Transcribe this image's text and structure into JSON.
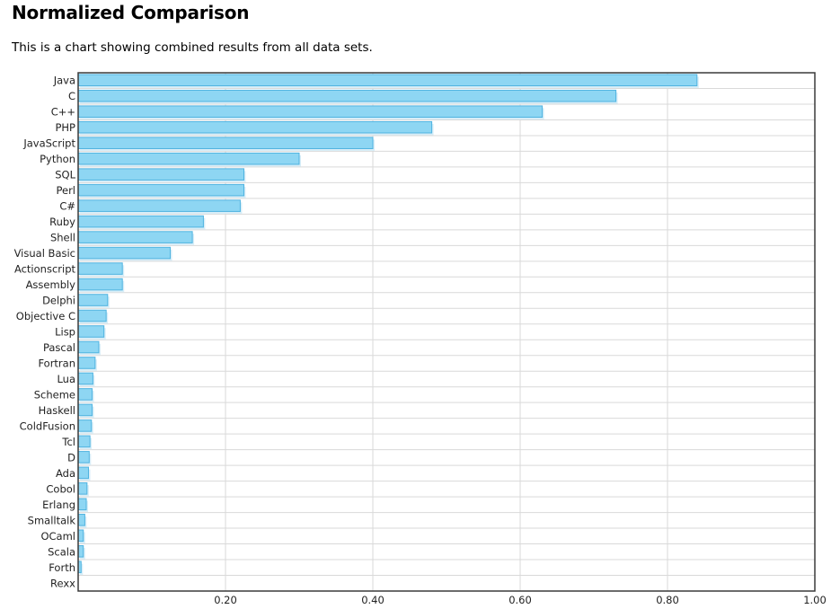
{
  "page": {
    "title": "Normalized Comparison",
    "description": "This is a chart showing combined results from all data sets."
  },
  "colors": {
    "bar_fill": "#8ed6f3",
    "bar_stroke": "#4fb3e0",
    "bar_shadow": "#d8eef8",
    "grid": "#d9d9d9",
    "frame": "#3a3a3a"
  },
  "chart_data": {
    "type": "bar",
    "orientation": "horizontal",
    "categories": [
      "Java",
      "C",
      "C++",
      "PHP",
      "JavaScript",
      "Python",
      "SQL",
      "Perl",
      "C#",
      "Ruby",
      "Shell",
      "Visual Basic",
      "Actionscript",
      "Assembly",
      "Delphi",
      "Objective C",
      "Lisp",
      "Pascal",
      "Fortran",
      "Lua",
      "Scheme",
      "Haskell",
      "ColdFusion",
      "Tcl",
      "D",
      "Ada",
      "Cobol",
      "Erlang",
      "Smalltalk",
      "OCaml",
      "Scala",
      "Forth",
      "Rexx"
    ],
    "values": [
      0.84,
      0.73,
      0.63,
      0.48,
      0.4,
      0.3,
      0.225,
      0.225,
      0.22,
      0.17,
      0.155,
      0.125,
      0.06,
      0.06,
      0.04,
      0.038,
      0.035,
      0.028,
      0.023,
      0.02,
      0.019,
      0.019,
      0.018,
      0.016,
      0.015,
      0.014,
      0.012,
      0.011,
      0.009,
      0.007,
      0.007,
      0.004,
      0.0
    ],
    "xlim": [
      0,
      1.0
    ],
    "xticks": [
      0.2,
      0.4,
      0.6,
      0.8,
      1.0
    ],
    "xtick_labels": [
      "0.20",
      "0.40",
      "0.60",
      "0.80",
      "1.00"
    ],
    "grid": true,
    "legend": "none",
    "title": "",
    "xlabel": "",
    "ylabel": ""
  }
}
